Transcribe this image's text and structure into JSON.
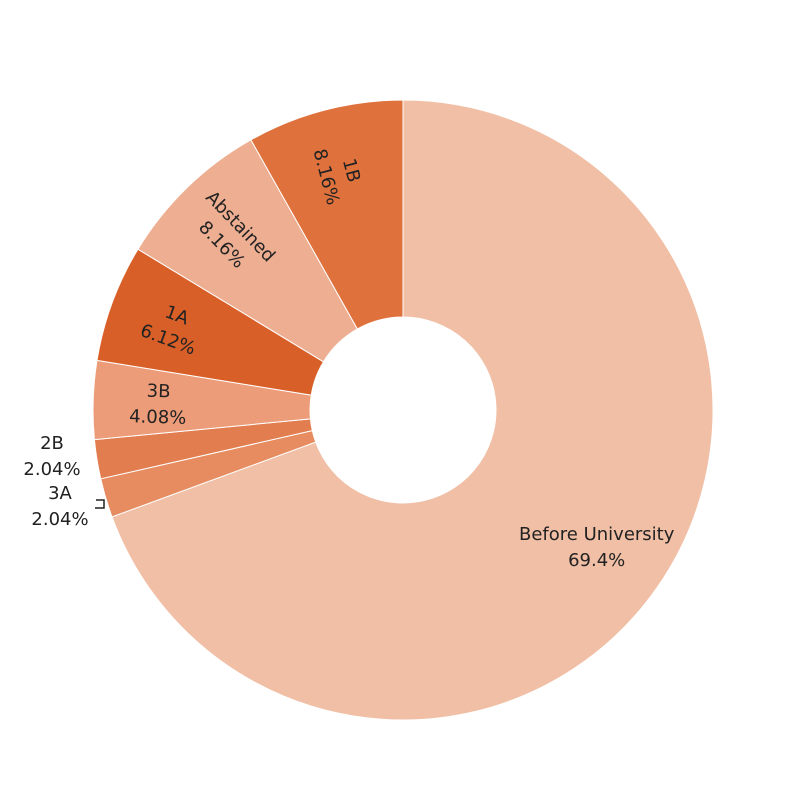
{
  "chart_data": {
    "type": "pie",
    "hole": true,
    "title": "",
    "slices": [
      {
        "label": "Before University",
        "percent_label": "69.4%",
        "value": 69.39,
        "color": "#f0bfa5"
      },
      {
        "label": "3A",
        "percent_label": "2.04%",
        "value": 2.04,
        "color": "#e68c60"
      },
      {
        "label": "2B",
        "percent_label": "2.04%",
        "value": 2.04,
        "color": "#e27d4f"
      },
      {
        "label": "3B",
        "percent_label": "4.08%",
        "value": 4.08,
        "color": "#ec9c78"
      },
      {
        "label": "1A",
        "percent_label": "6.12%",
        "value": 6.12,
        "color": "#d95f28"
      },
      {
        "label": "Abstained",
        "percent_label": "8.16%",
        "value": 8.16,
        "color": "#edae91"
      },
      {
        "label": "1B",
        "percent_label": "8.16%",
        "value": 8.16,
        "color": "#df713c"
      }
    ]
  }
}
